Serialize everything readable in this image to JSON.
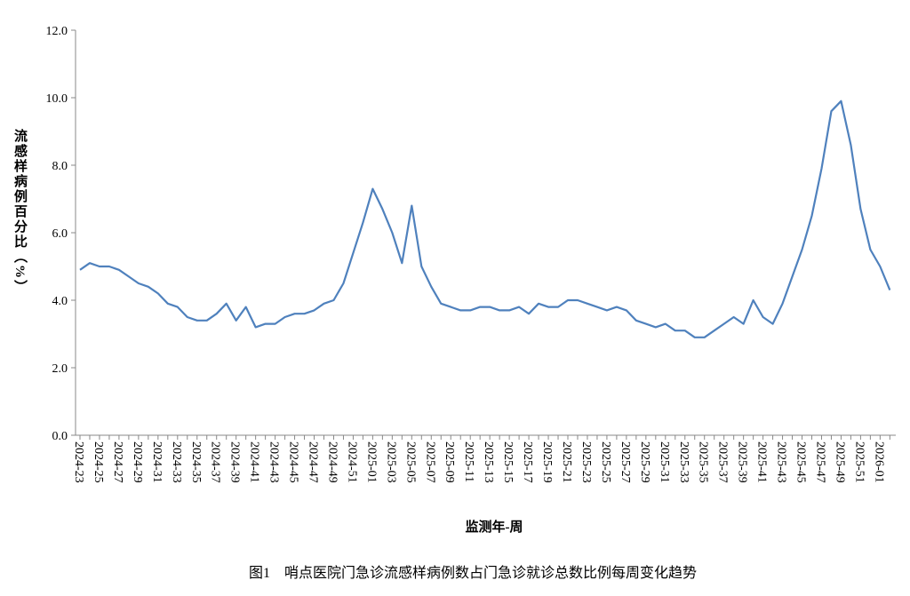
{
  "chart_data": {
    "type": "line",
    "caption": "图1　哨点医院门急诊流感样病例数占门急诊就诊总数比例每周变化趋势",
    "x_label": "监测年-周",
    "y_label": "流感样病例百分比（%）",
    "categories": [
      "2024-23",
      null,
      "2024-25",
      null,
      "2024-27",
      null,
      "2024-29",
      null,
      "2024-31",
      null,
      "2024-33",
      null,
      "2024-35",
      null,
      "2024-37",
      null,
      "2024-39",
      null,
      "2024-41",
      null,
      "2024-43",
      null,
      "2024-45",
      null,
      "2024-47",
      null,
      "2024-49",
      null,
      "2024-51",
      null,
      "2025-01",
      null,
      "2025-03",
      null,
      "2025-05",
      null,
      "2025-07",
      null,
      "2025-09",
      null,
      "2025-11",
      null,
      "2025-13",
      null,
      "2025-15",
      null,
      "2025-17",
      null,
      "2025-19",
      null,
      "2025-21",
      null,
      "2025-23",
      null,
      "2025-25",
      null,
      "2025-27",
      null,
      "2025-29",
      null,
      "2025-31",
      null,
      "2025-33",
      null,
      "2025-35",
      null,
      "2025-37",
      null,
      "2025-39",
      null,
      "2025-41",
      null,
      "2025-43",
      null,
      "2025-45",
      null,
      "2025-47",
      null,
      "2025-49",
      null,
      "2025-51",
      null,
      "2026-01",
      null
    ],
    "values": [
      4.9,
      5.1,
      5.0,
      5.0,
      4.9,
      4.7,
      4.5,
      4.4,
      4.2,
      3.9,
      3.8,
      3.5,
      3.4,
      3.4,
      3.6,
      3.9,
      3.4,
      3.8,
      3.2,
      3.3,
      3.3,
      3.5,
      3.6,
      3.6,
      3.7,
      3.9,
      4.0,
      4.5,
      5.4,
      6.3,
      7.3,
      6.7,
      6.0,
      5.1,
      6.8,
      5.0,
      4.4,
      3.9,
      3.8,
      3.7,
      3.7,
      3.8,
      3.8,
      3.7,
      3.7,
      3.8,
      3.6,
      3.9,
      3.8,
      3.8,
      4.0,
      4.0,
      3.9,
      3.8,
      3.7,
      3.8,
      3.7,
      3.4,
      3.3,
      3.2,
      3.3,
      3.1,
      3.1,
      2.9,
      2.9,
      3.1,
      3.3,
      3.5,
      3.3,
      4.0,
      3.5,
      3.3,
      3.9,
      4.7,
      5.5,
      6.5,
      7.9,
      9.6,
      9.9,
      8.6,
      6.7,
      5.5,
      5.0,
      4.3
    ],
    "color": "#4f81bd",
    "ylim": [
      0,
      12
    ],
    "yticks": [
      {
        "value": 0,
        "label": "0.0"
      },
      {
        "value": 2,
        "label": "2.0"
      },
      {
        "value": 4,
        "label": "4.0"
      },
      {
        "value": 6,
        "label": "6.0"
      },
      {
        "value": 8,
        "label": "8.0"
      },
      {
        "value": 10,
        "label": "10.0"
      },
      {
        "value": 12,
        "label": "12.0"
      }
    ]
  }
}
